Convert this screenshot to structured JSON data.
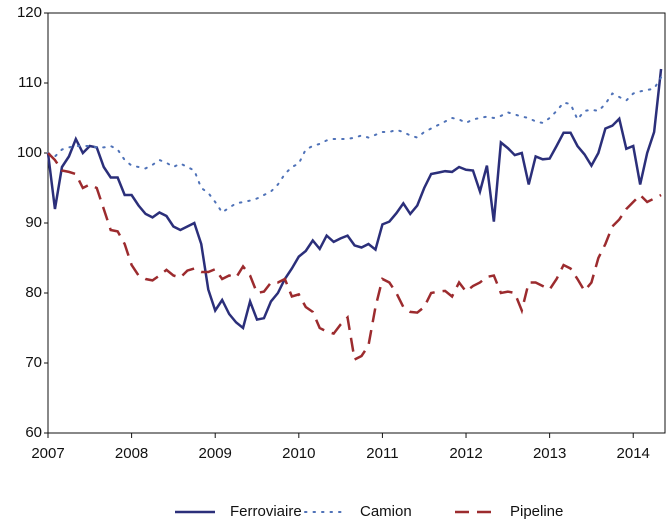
{
  "chart_data": {
    "type": "line",
    "x": [
      2007,
      2007.083,
      2007.167,
      2007.25,
      2007.333,
      2007.417,
      2007.5,
      2007.583,
      2007.667,
      2007.75,
      2007.833,
      2007.917,
      2008,
      2008.083,
      2008.167,
      2008.25,
      2008.333,
      2008.417,
      2008.5,
      2008.583,
      2008.667,
      2008.75,
      2008.833,
      2008.917,
      2009,
      2009.083,
      2009.167,
      2009.25,
      2009.333,
      2009.417,
      2009.5,
      2009.583,
      2009.667,
      2009.75,
      2009.833,
      2009.917,
      2010,
      2010.083,
      2010.167,
      2010.25,
      2010.333,
      2010.417,
      2010.5,
      2010.583,
      2010.667,
      2010.75,
      2010.833,
      2010.917,
      2011,
      2011.083,
      2011.167,
      2011.25,
      2011.333,
      2011.417,
      2011.5,
      2011.583,
      2011.667,
      2011.75,
      2011.833,
      2011.917,
      2012,
      2012.083,
      2012.167,
      2012.25,
      2012.333,
      2012.417,
      2012.5,
      2012.583,
      2012.667,
      2012.75,
      2012.833,
      2012.917,
      2013,
      2013.083,
      2013.167,
      2013.25,
      2013.333,
      2013.417,
      2013.5,
      2013.583,
      2013.667,
      2013.75,
      2013.833,
      2013.917,
      2014,
      2014.083,
      2014.167,
      2014.25,
      2014.333
    ],
    "series": [
      {
        "name": "Ferroviaire",
        "color": "#2b2f7a",
        "style": "solid",
        "values": [
          100,
          92,
          98,
          99.5,
          102,
          100,
          101,
          100.8,
          98,
          96.5,
          96.5,
          94,
          94,
          92.5,
          91.3,
          90.8,
          91.5,
          91,
          89.5,
          89,
          89.5,
          90,
          87,
          80.5,
          77.5,
          79,
          77,
          75.8,
          75,
          78.8,
          76.2,
          76.4,
          78.8,
          80,
          82,
          83.5,
          85.2,
          86,
          87.5,
          86.3,
          88.2,
          87.3,
          87.8,
          88.2,
          86.8,
          86.5,
          87,
          86.2,
          89.8,
          90.2,
          91.4,
          92.8,
          91.3,
          92.5,
          95,
          97,
          97.2,
          97.4,
          97.3,
          98,
          97.6,
          97.5,
          94.5,
          98.2,
          90.2,
          101.5,
          100.7,
          99.7,
          100,
          95.5,
          99.5,
          99.1,
          99.2,
          101,
          102.9,
          102.9,
          101,
          99.8,
          98.2,
          100,
          103.5,
          103.9,
          104.9,
          100.6,
          101,
          95.5,
          100,
          103,
          112
        ]
      },
      {
        "name": "Camion",
        "color": "#4f72b8",
        "style": "dotted",
        "values": [
          100,
          99.5,
          100.5,
          100.8,
          101,
          101,
          101,
          100.8,
          100.8,
          101,
          100.5,
          99,
          98.2,
          98,
          97.8,
          98.3,
          99,
          98.6,
          98,
          98.5,
          98,
          97.5,
          95,
          94.3,
          93,
          91.5,
          92.2,
          92.8,
          93,
          93.2,
          93.5,
          94,
          94.5,
          95.5,
          97,
          98,
          98.5,
          100.5,
          101,
          101.3,
          101.8,
          102,
          102,
          102,
          102.2,
          102.5,
          102.2,
          102.6,
          103,
          103,
          103.3,
          103,
          102.5,
          102.2,
          103,
          103.5,
          104,
          104.5,
          105,
          104.8,
          104.3,
          104.8,
          105,
          105.2,
          105,
          105.3,
          105.8,
          105.5,
          105.2,
          105,
          104.5,
          104.3,
          105,
          106,
          107.2,
          107,
          104.8,
          106,
          106.2,
          106,
          107,
          108.5,
          108,
          107.5,
          108.5,
          108.8,
          109,
          109.2,
          110.8
        ]
      },
      {
        "name": "Pipeline",
        "color": "#9c2b2e",
        "style": "dashed",
        "values": [
          100,
          99,
          97.5,
          97.3,
          97,
          95,
          95.5,
          95,
          92,
          89,
          88.8,
          87,
          84,
          82.5,
          82,
          81.8,
          82.5,
          83.3,
          82.5,
          82.2,
          83.2,
          83.5,
          83,
          83,
          83.4,
          82,
          82.5,
          82.2,
          83.8,
          82.5,
          80,
          80.2,
          81.5,
          81.5,
          82,
          79.5,
          79.8,
          78,
          77.3,
          75,
          74.5,
          74.2,
          75.5,
          76.5,
          70.5,
          71,
          72.5,
          78,
          82,
          81.5,
          80,
          78,
          77.3,
          77.2,
          78,
          80,
          80.2,
          80.3,
          79.5,
          81.5,
          80.2,
          81,
          81.5,
          82.3,
          82.5,
          80,
          80.2,
          80,
          77.5,
          81.5,
          81.5,
          81,
          80.5,
          82,
          84,
          83.5,
          82,
          80.3,
          81.5,
          85,
          87,
          89.5,
          90.5,
          92,
          93,
          94,
          93,
          93.5,
          94
        ]
      }
    ],
    "xlim": [
      2007,
      2014.38
    ],
    "xticks": [
      2007,
      2008,
      2009,
      2010,
      2011,
      2012,
      2013,
      2014
    ],
    "ylim": [
      60,
      120
    ],
    "yticks": [
      60,
      70,
      80,
      90,
      100,
      110,
      120
    ],
    "legend": "bottom"
  }
}
